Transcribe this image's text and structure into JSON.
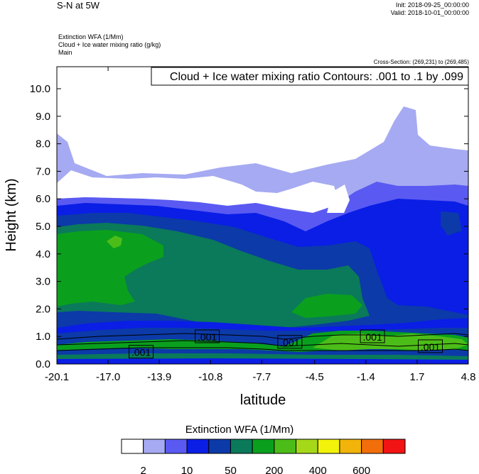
{
  "header": {
    "title": "S-N at 5W",
    "init": "Init: 2018-09-25_00:00:00",
    "valid": "Valid: 2018-10-01_00:00:00",
    "field_lines": [
      "Extinction WFA   (1/Mm)",
      "Cloud + Ice water mixing ratio   (g/kg)",
      "Main"
    ],
    "cross_section": "Cross-Section: (269,231) to (269,485)"
  },
  "chart_data": {
    "type": "heatmap",
    "title": "Cloud + Ice water mixing ratio Contours: .001 to .1 by .099",
    "xlabel": "latitude",
    "ylabel": "Height (km)",
    "xlim": [
      -20.1,
      4.8
    ],
    "ylim": [
      0.0,
      10.8
    ],
    "x_ticks": [
      -20.1,
      -17.0,
      -13.9,
      -10.8,
      -7.7,
      -4.5,
      -1.4,
      1.7,
      4.8
    ],
    "x_tick_labels": [
      "-20.1",
      "-17.0",
      "-13.9",
      "-10.8",
      "-7.7",
      "-4.5",
      "-1.4",
      "1.7",
      "4.8"
    ],
    "y_ticks": [
      0,
      1,
      2,
      3,
      4,
      5,
      6,
      7,
      8,
      9,
      10
    ],
    "y_tick_labels": [
      "0.0",
      "1.0",
      "2.0",
      "3.0",
      "4.0",
      "5.0",
      "6.0",
      "7.0",
      "8.0",
      "9.0",
      "10.0"
    ],
    "grid": false,
    "colorbar": {
      "title": "Extinction WFA  (1/Mm)",
      "colors": [
        "#ffffff",
        "#a6aaf2",
        "#5a5af2",
        "#0a1ee6",
        "#0c3aa8",
        "#0a7a5a",
        "#0aa01e",
        "#4cbd18",
        "#a6d81a",
        "#f2f20a",
        "#f2b40a",
        "#f26e0a",
        "#f21414"
      ],
      "tick_labels": [
        "2",
        "10",
        "50",
        "200",
        "400",
        "600"
      ],
      "tick_boundaries": [
        1,
        3,
        5,
        7,
        9,
        11
      ]
    },
    "contour_labels": [
      {
        "text": ".001",
        "x": -15.0,
        "y": 0.42
      },
      {
        "text": ".001",
        "x": -11.0,
        "y": 0.98
      },
      {
        "text": ".001",
        "x": -6.0,
        "y": 0.78
      },
      {
        "text": ".001",
        "x": -1.0,
        "y": 0.98
      },
      {
        "text": ".001",
        "x": 2.5,
        "y": 0.62
      }
    ]
  }
}
